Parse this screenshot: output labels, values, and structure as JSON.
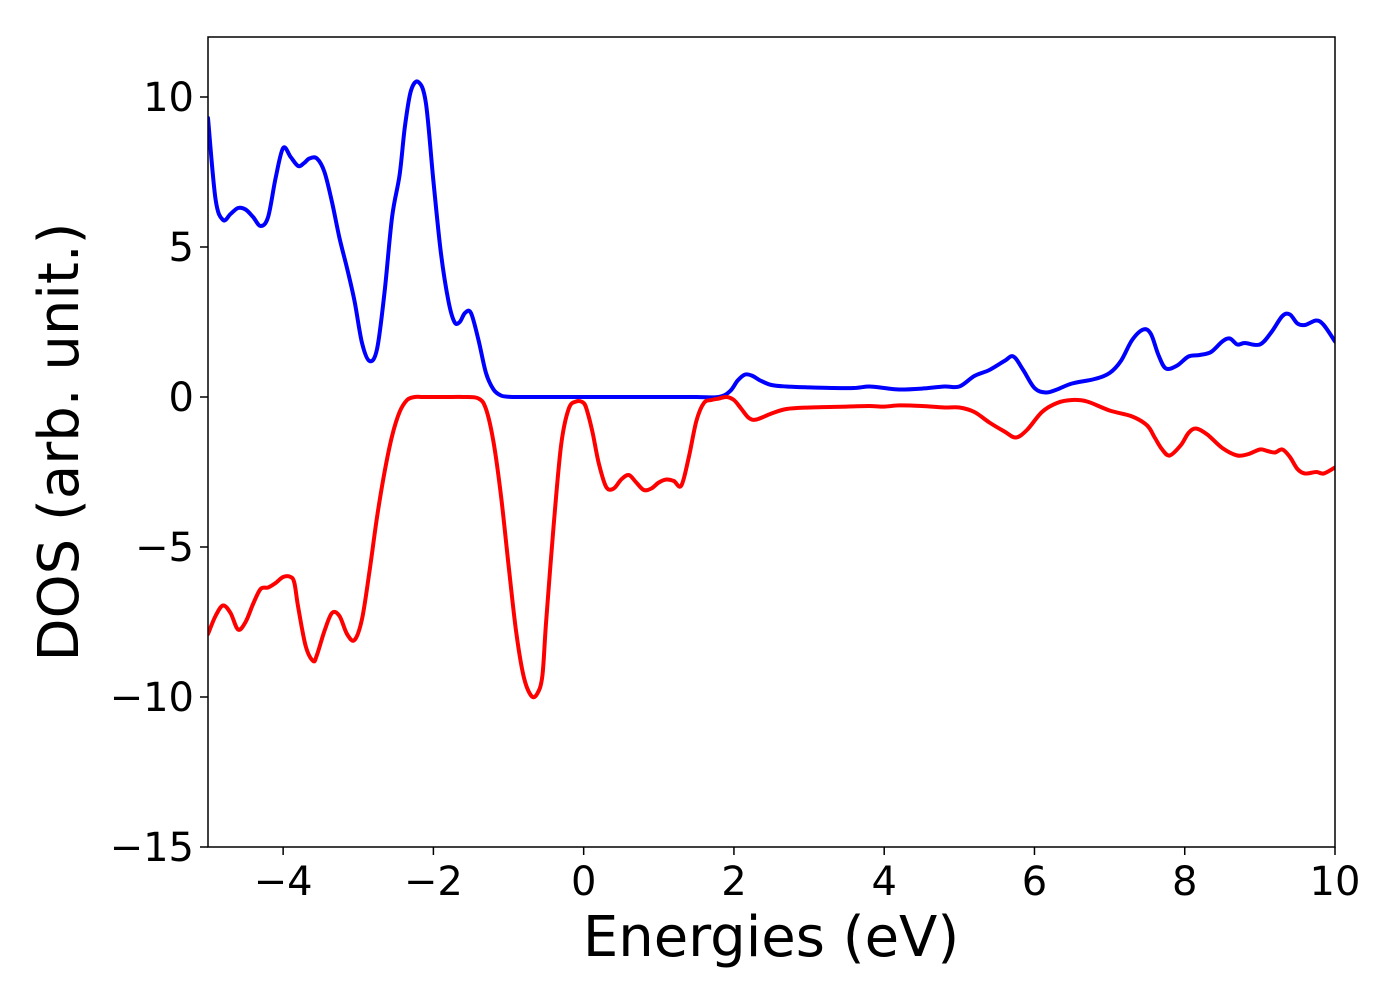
{
  "chart_data": {
    "type": "line",
    "title": "",
    "xlabel": "Energies (eV)",
    "ylabel": "DOS (arb. unit.)",
    "xlim": [
      -5,
      10
    ],
    "ylim": [
      -15,
      12
    ],
    "xticks": [
      -4,
      -2,
      0,
      2,
      4,
      6,
      8,
      10
    ],
    "yticks": [
      -15,
      -10,
      -5,
      0,
      5,
      10
    ],
    "xtick_labels": [
      "−4",
      "−2",
      "0",
      "2",
      "4",
      "6",
      "8",
      "10"
    ],
    "ytick_labels": [
      "−15",
      "−10",
      "−5",
      "0",
      "5",
      "10"
    ],
    "grid": false,
    "series": [
      {
        "color": "#0000ff",
        "x": [
          -5.0,
          -4.9,
          -4.8,
          -4.7,
          -4.6,
          -4.5,
          -4.4,
          -4.3,
          -4.2,
          -4.1,
          -4.0,
          -3.9,
          -3.8,
          -3.72,
          -3.65,
          -3.55,
          -3.45,
          -3.35,
          -3.25,
          -3.15,
          -3.05,
          -2.95,
          -2.85,
          -2.75,
          -2.65,
          -2.55,
          -2.45,
          -2.38,
          -2.3,
          -2.2,
          -2.1,
          -2.0,
          -1.9,
          -1.8,
          -1.72,
          -1.65,
          -1.58,
          -1.5,
          -1.4,
          -1.3,
          -1.2,
          -1.1,
          -1.0,
          -0.9,
          -0.8,
          -0.74,
          -0.65,
          -0.55,
          -0.45,
          -0.35,
          -0.25,
          -0.15,
          0.0,
          0.5,
          1.0,
          1.5,
          1.8,
          1.95,
          2.05,
          2.15,
          2.25,
          2.35,
          2.5,
          2.7,
          3.0,
          3.3,
          3.6,
          3.8,
          4.0,
          4.2,
          4.5,
          4.8,
          5.0,
          5.2,
          5.4,
          5.6,
          5.72,
          5.85,
          6.0,
          6.15,
          6.3,
          6.5,
          6.8,
          7.0,
          7.15,
          7.3,
          7.45,
          7.55,
          7.65,
          7.75,
          7.9,
          8.05,
          8.2,
          8.35,
          8.5,
          8.6,
          8.7,
          8.8,
          9.0,
          9.15,
          9.3,
          9.4,
          9.5,
          9.6,
          9.75,
          9.85,
          10.0
        ],
        "y": [
          9.3,
          6.6,
          5.9,
          6.1,
          6.3,
          6.25,
          6.0,
          5.7,
          6.0,
          7.3,
          8.3,
          8.0,
          7.7,
          7.8,
          7.95,
          7.95,
          7.5,
          6.5,
          5.3,
          4.3,
          3.2,
          1.8,
          1.2,
          1.6,
          3.5,
          6.0,
          7.4,
          9.0,
          10.2,
          10.5,
          9.8,
          7.2,
          4.8,
          3.2,
          2.5,
          2.5,
          2.8,
          2.8,
          1.9,
          0.8,
          0.25,
          0.05,
          0.01,
          0.0,
          0.0,
          0.0,
          0.0,
          0.0,
          0.0,
          0.0,
          0.0,
          0.0,
          0.0,
          0.0,
          0.0,
          0.0,
          0.0,
          0.2,
          0.55,
          0.75,
          0.7,
          0.55,
          0.4,
          0.35,
          0.32,
          0.3,
          0.3,
          0.35,
          0.3,
          0.25,
          0.28,
          0.35,
          0.35,
          0.7,
          0.9,
          1.2,
          1.35,
          0.9,
          0.3,
          0.15,
          0.25,
          0.45,
          0.6,
          0.8,
          1.2,
          1.9,
          2.25,
          2.1,
          1.4,
          0.95,
          1.05,
          1.35,
          1.4,
          1.5,
          1.85,
          1.95,
          1.75,
          1.8,
          1.75,
          2.15,
          2.7,
          2.75,
          2.45,
          2.4,
          2.55,
          2.4,
          1.85
        ]
      },
      {
        "color": "#ff0000",
        "x": [
          -5.0,
          -4.9,
          -4.8,
          -4.7,
          -4.6,
          -4.5,
          -4.4,
          -4.3,
          -4.2,
          -4.1,
          -4.0,
          -3.9,
          -3.85,
          -3.8,
          -3.7,
          -3.6,
          -3.55,
          -3.45,
          -3.35,
          -3.25,
          -3.15,
          -3.05,
          -2.95,
          -2.85,
          -2.75,
          -2.65,
          -2.55,
          -2.45,
          -2.35,
          -2.25,
          -2.15,
          -2.05,
          -1.95,
          -1.8,
          -1.6,
          -1.4,
          -1.3,
          -1.2,
          -1.1,
          -1.0,
          -0.9,
          -0.8,
          -0.7,
          -0.62,
          -0.55,
          -0.5,
          -0.4,
          -0.3,
          -0.2,
          -0.1,
          0.0,
          0.05,
          0.12,
          0.2,
          0.3,
          0.4,
          0.5,
          0.6,
          0.7,
          0.8,
          0.9,
          1.0,
          1.1,
          1.2,
          1.3,
          1.4,
          1.5,
          1.6,
          1.7,
          1.8,
          1.9,
          2.0,
          2.1,
          2.2,
          2.3,
          2.5,
          2.7,
          3.0,
          3.5,
          3.8,
          4.0,
          4.2,
          4.5,
          4.8,
          5.0,
          5.2,
          5.4,
          5.6,
          5.75,
          5.9,
          6.1,
          6.3,
          6.5,
          6.7,
          7.0,
          7.3,
          7.5,
          7.6,
          7.7,
          7.8,
          7.95,
          8.05,
          8.15,
          8.3,
          8.5,
          8.7,
          8.85,
          9.0,
          9.1,
          9.2,
          9.3,
          9.4,
          9.5,
          9.6,
          9.75,
          9.85,
          10.0
        ],
        "y": [
          -7.9,
          -7.3,
          -6.95,
          -7.2,
          -7.75,
          -7.5,
          -6.9,
          -6.4,
          -6.35,
          -6.2,
          -6.0,
          -6.0,
          -6.2,
          -7.0,
          -8.3,
          -8.8,
          -8.6,
          -7.8,
          -7.2,
          -7.3,
          -7.9,
          -8.1,
          -7.4,
          -5.8,
          -4.0,
          -2.5,
          -1.3,
          -0.5,
          -0.1,
          0.0,
          0.0,
          0.0,
          0.0,
          0.0,
          0.0,
          -0.05,
          -0.4,
          -1.5,
          -3.3,
          -5.6,
          -7.8,
          -9.3,
          -9.95,
          -9.9,
          -9.3,
          -7.5,
          -4.3,
          -1.6,
          -0.4,
          -0.15,
          -0.2,
          -0.5,
          -1.2,
          -2.2,
          -3.0,
          -3.05,
          -2.75,
          -2.6,
          -2.85,
          -3.1,
          -3.05,
          -2.85,
          -2.75,
          -2.8,
          -2.95,
          -2.0,
          -0.8,
          -0.2,
          -0.1,
          -0.05,
          0.0,
          -0.1,
          -0.4,
          -0.7,
          -0.75,
          -0.55,
          -0.4,
          -0.35,
          -0.32,
          -0.3,
          -0.32,
          -0.28,
          -0.3,
          -0.35,
          -0.35,
          -0.5,
          -0.85,
          -1.15,
          -1.35,
          -1.1,
          -0.5,
          -0.2,
          -0.1,
          -0.15,
          -0.45,
          -0.65,
          -0.95,
          -1.35,
          -1.75,
          -1.95,
          -1.6,
          -1.2,
          -1.05,
          -1.25,
          -1.7,
          -1.95,
          -1.9,
          -1.75,
          -1.8,
          -1.85,
          -1.75,
          -2.0,
          -2.4,
          -2.55,
          -2.5,
          -2.55,
          -2.35
        ]
      }
    ]
  }
}
